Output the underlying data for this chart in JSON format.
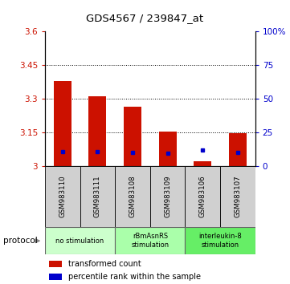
{
  "title": "GDS4567 / 239847_at",
  "samples": [
    "GSM983110",
    "GSM983111",
    "GSM983108",
    "GSM983109",
    "GSM983106",
    "GSM983107"
  ],
  "transformed_counts": [
    3.38,
    3.31,
    3.265,
    3.155,
    3.02,
    3.145
  ],
  "percentile_ranks": [
    10.5,
    10.5,
    10.2,
    9.8,
    11.8,
    10.0
  ],
  "ylim_left": [
    3.0,
    3.6
  ],
  "ylim_right": [
    0,
    100
  ],
  "yticks_left": [
    3.0,
    3.15,
    3.3,
    3.45,
    3.6
  ],
  "yticks_right": [
    0,
    25,
    50,
    75,
    100
  ],
  "ytick_labels_left": [
    "3",
    "3.15",
    "3.3",
    "3.45",
    "3.6"
  ],
  "ytick_labels_right": [
    "0",
    "25",
    "50",
    "75",
    "100%"
  ],
  "bar_color": "#cc1100",
  "dot_color": "#0000cc",
  "plot_bg": "#ffffff",
  "label_bg": "#d0d0d0",
  "protocol_groups": [
    {
      "label": "no stimulation",
      "samples": [
        0,
        1
      ],
      "color": "#ccffcc"
    },
    {
      "label": "rBmAsnRS\nstimulation",
      "samples": [
        2,
        3
      ],
      "color": "#aaffaa"
    },
    {
      "label": "interleukin-8\nstimulation",
      "samples": [
        4,
        5
      ],
      "color": "#66ee66"
    }
  ],
  "legend_items": [
    {
      "color": "#cc1100",
      "label": "transformed count"
    },
    {
      "color": "#0000cc",
      "label": "percentile rank within the sample"
    }
  ],
  "bar_width": 0.5,
  "base_value": 3.0
}
